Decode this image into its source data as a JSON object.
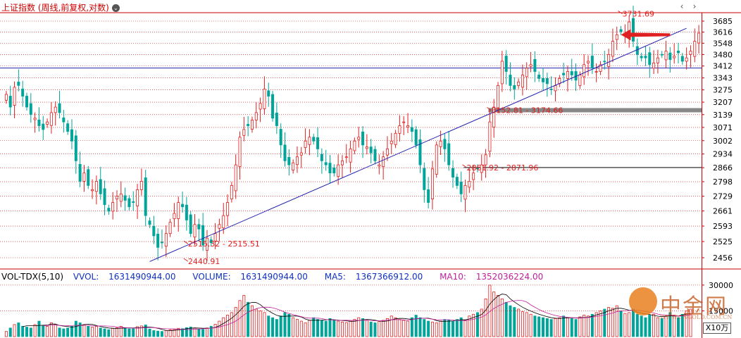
{
  "header": {
    "title": "上证指数 (周线,前复权,对数)",
    "info_icon": "dot-icon",
    "nav_prev": "‹",
    "nav_next": "›"
  },
  "volume_header": {
    "indicator": "VOL-TDX(5,10)",
    "vvol_label": "VVOL:",
    "vvol_value": "1631490944.00",
    "volume_label": "VOLUME:",
    "volume_value": "1631490944.00",
    "ma5_label": "MA5:",
    "ma5_value": "1367366912.00",
    "ma10_label": "MA10:",
    "ma10_value": "1352036224.00"
  },
  "watermark": {
    "name": "中金网",
    "site": "WWW.CNGOLD.COM.CN"
  },
  "volume_unit": "X10万",
  "colors": {
    "up": "#e02020",
    "down": "#00a59a",
    "trendline": "#2020b0",
    "ma5": "#000000",
    "ma10": "#c0209a",
    "annotation": "#e02020",
    "arrow": "#e02020",
    "support": "#888888",
    "grid": "#cc0000"
  },
  "chart_data": {
    "type": "candlestick",
    "scale": "log",
    "price_axis_ticks": [
      3685,
      3616,
      3548,
      3480,
      3412,
      3343,
      3275,
      3207,
      3139,
      3071,
      3002,
      2934,
      2866,
      2798,
      2729,
      2661,
      2593,
      2525,
      2456
    ],
    "volume_axis_ticks": [
      30000,
      15000
    ],
    "grid": true,
    "annotations": [
      {
        "text": "3731.69",
        "price": 3731.69,
        "anchor_index": 150
      },
      {
        "text": "2440.91",
        "price": 2440.91,
        "anchor_index": 44
      },
      {
        "text": "2515.32 - 2515.51",
        "price": 2515.4,
        "anchor_index": 44
      },
      {
        "text": "3152.81 - 3174.66",
        "price": 3163,
        "anchor_index": 118
      },
      {
        "text": "2861.92 - 2871.96",
        "price": 2867,
        "anchor_index": 112
      }
    ],
    "support_levels": [
      {
        "price": 3163,
        "start_index": 118,
        "style": "thick"
      },
      {
        "price": 2867,
        "start_index": 112,
        "style": "thin"
      },
      {
        "price": 3400,
        "start_index": 0,
        "style": "line"
      }
    ],
    "trendline": {
      "start_index": 35,
      "start_price": 2440,
      "end_index": 166,
      "end_price": 3640
    },
    "arrow": {
      "index_from": 162,
      "index_to": 150,
      "price": 3600
    },
    "closes": [
      3250,
      3180,
      3290,
      3300,
      3240,
      3180,
      3140,
      3120,
      3080,
      3060,
      3100,
      3150,
      3180,
      3150,
      3100,
      3050,
      3000,
      2900,
      2800,
      2840,
      2780,
      2760,
      2800,
      2740,
      2690,
      2660,
      2700,
      2730,
      2740,
      2710,
      2680,
      2700,
      2760,
      2800,
      2640,
      2600,
      2550,
      2500,
      2520,
      2560,
      2610,
      2650,
      2700,
      2680,
      2620,
      2560,
      2600,
      2580,
      2510,
      2540,
      2520,
      2560,
      2600,
      2640,
      2700,
      2780,
      2880,
      3020,
      3060,
      3080,
      3110,
      3150,
      3200,
      3280,
      3240,
      3120,
      3080,
      2980,
      2900,
      2880,
      2890,
      2920,
      2940,
      3000,
      3020,
      3000,
      2960,
      2900,
      2880,
      2840,
      2840,
      2880,
      2900,
      2920,
      2960,
      3000,
      3020,
      2980,
      2970,
      2940,
      2900,
      2880,
      2920,
      2960,
      3000,
      3040,
      3080,
      3100,
      3080,
      3050,
      2980,
      2880,
      2760,
      2700,
      2860,
      2980,
      3000,
      2960,
      2880,
      2820,
      2780,
      2740,
      2780,
      2800,
      2840,
      2860,
      2880,
      2930,
      3100,
      3180,
      3300,
      3440,
      3380,
      3300,
      3280,
      3320,
      3360,
      3400,
      3420,
      3380,
      3340,
      3320,
      3310,
      3280,
      3300,
      3340,
      3360,
      3380,
      3360,
      3330,
      3360,
      3420,
      3440,
      3400,
      3380,
      3420,
      3440,
      3480,
      3560,
      3600,
      3620,
      3600,
      3680,
      3560,
      3480,
      3460,
      3460,
      3420,
      3430,
      3460,
      3480,
      3500,
      3450,
      3470,
      3490,
      3440,
      3460,
      3500,
      3560,
      3610
    ],
    "volumes": [
      3000,
      5000,
      7000,
      8000,
      6000,
      5500,
      5000,
      7000,
      9000,
      6500,
      6000,
      8000,
      7000,
      5000,
      4500,
      5000,
      6000,
      9000,
      8000,
      7000,
      6000,
      5500,
      6000,
      5000,
      4500,
      4000,
      4800,
      5200,
      6000,
      5000,
      4500,
      4600,
      5800,
      6200,
      6800,
      4400,
      3500,
      3200,
      3000,
      3600,
      4000,
      4200,
      4800,
      4600,
      5200,
      5600,
      5000,
      4400,
      4200,
      5000,
      6000,
      7200,
      9000,
      11000,
      12500,
      14000,
      17000,
      21000,
      24000,
      20000,
      18000,
      16000,
      15000,
      14000,
      12000,
      11000,
      10000,
      12000,
      14000,
      13000,
      11000,
      10000,
      9000,
      8000,
      9500,
      11000,
      10000,
      9500,
      9000,
      10500,
      9800,
      9000,
      8500,
      8200,
      9000,
      10000,
      11000,
      10500,
      9500,
      8500,
      8000,
      8800,
      9500,
      10500,
      12000,
      11000,
      10000,
      9500,
      9000,
      11000,
      12500,
      11000,
      10000,
      9000,
      8500,
      8000,
      9000,
      10000,
      9500,
      8800,
      10000,
      11000,
      9500,
      12000,
      13000,
      14000,
      16000,
      22000,
      30000,
      26000,
      24000,
      22000,
      20000,
      18000,
      17000,
      16000,
      14500,
      14000,
      13000,
      12000,
      11500,
      11000,
      10500,
      10000,
      10500,
      11000,
      12000,
      11000,
      10500,
      10000,
      11500,
      12500,
      12000,
      13000,
      14000,
      15000,
      16000,
      17000,
      16500,
      18000,
      15000,
      13500,
      14000,
      16000,
      13000,
      12000,
      11000,
      12500,
      13000,
      11000,
      10500,
      12000,
      14000,
      12500,
      11000,
      13000,
      15000,
      16000
    ]
  }
}
